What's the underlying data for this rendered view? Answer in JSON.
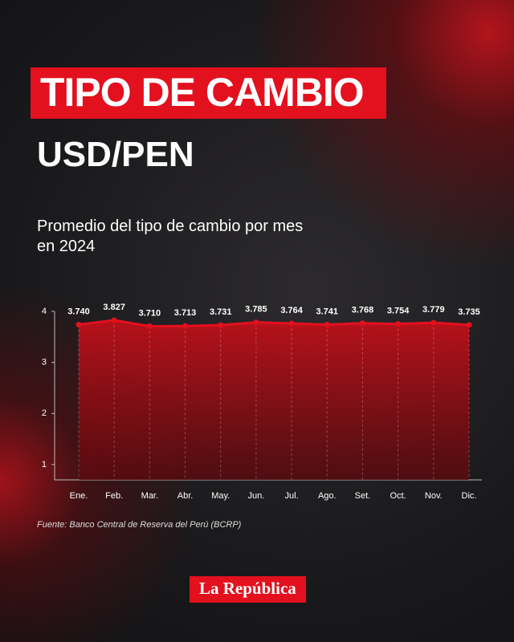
{
  "header": {
    "title": "TIPO DE CAMBIO",
    "subtitle": "USD/PEN"
  },
  "chart_data": {
    "type": "area",
    "title": "Promedio del tipo de cambio por mes en 2024",
    "categories": [
      "Ene.",
      "Feb.",
      "Mar.",
      "Abr.",
      "May.",
      "Jun.",
      "Jul.",
      "Ago.",
      "Set.",
      "Oct.",
      "Nov.",
      "Dic."
    ],
    "values": [
      3.74,
      3.827,
      3.71,
      3.713,
      3.731,
      3.785,
      3.764,
      3.741,
      3.768,
      3.754,
      3.779,
      3.735
    ],
    "value_labels": [
      "3.740",
      "3.827",
      "3.710",
      "3.713",
      "3.731",
      "3.785",
      "3.764",
      "3.741",
      "3.768",
      "3.754",
      "3.779",
      "3.735"
    ],
    "color": "#e3101e",
    "ylim": [
      0.7,
      4
    ],
    "yticks": [
      1,
      2,
      3,
      4
    ],
    "grid": true
  },
  "source": "Fuente: Banco Central de Reserva del Perú (BCRP)",
  "logo": "La República"
}
